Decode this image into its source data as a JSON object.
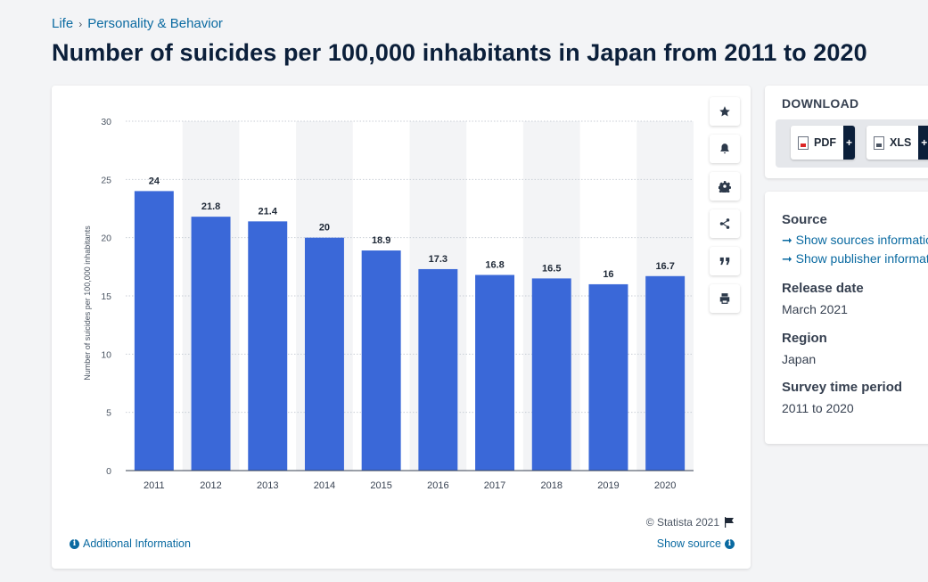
{
  "breadcrumb": {
    "root": "Life",
    "separator": "›",
    "category": "Personality & Behavior"
  },
  "page_title": "Number of suicides per 100,000 inhabitants in Japan from 2011 to 2020",
  "toolbar": {
    "icons": [
      "star-icon",
      "bell-icon",
      "gear-icon",
      "share-icon",
      "quote-icon",
      "print-icon"
    ]
  },
  "chart_footer": {
    "copyright": "© Statista 2021",
    "additional_info": "Additional Information",
    "show_source": "Show source"
  },
  "download": {
    "title": "DOWNLOAD",
    "pdf_label": "PDF",
    "xls_label": "XLS",
    "plus": "+"
  },
  "info": {
    "source_title": "Source",
    "source_link": "➞ Show sources information",
    "publisher_link": "➞ Show publisher information",
    "release_title": "Release date",
    "release_value": "March 2021",
    "region_title": "Region",
    "region_value": "Japan",
    "period_title": "Survey time period",
    "period_value": "2011 to 2020"
  },
  "colors": {
    "bar": "#3a68d8",
    "band": "#f3f4f6",
    "link": "#0a6aa1",
    "title": "#0b1f3a"
  },
  "chart_data": {
    "type": "bar",
    "categories": [
      "2011",
      "2012",
      "2013",
      "2014",
      "2015",
      "2016",
      "2017",
      "2018",
      "2019",
      "2020"
    ],
    "values": [
      24,
      21.8,
      21.4,
      20,
      18.9,
      17.3,
      16.8,
      16.5,
      16,
      16.7
    ],
    "data_labels": [
      "24",
      "21.8",
      "21.4",
      "20",
      "18.9",
      "17.3",
      "16.8",
      "16.5",
      "16",
      "16.7"
    ],
    "ylabel": "Number of suicides per 100,000 inhabitants",
    "xlabel": "",
    "ylim": [
      0,
      30
    ],
    "yticks": [
      "0",
      "5",
      "10",
      "15",
      "20",
      "25",
      "30"
    ],
    "grid": true
  }
}
